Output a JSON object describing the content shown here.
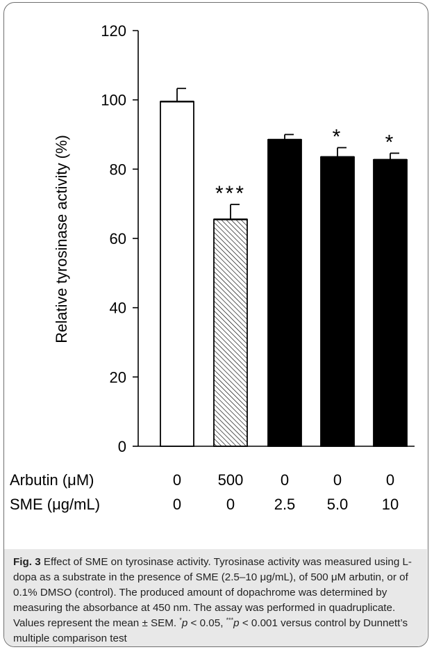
{
  "chart_data": {
    "type": "bar",
    "ylabel": "Relative tyrosinase activity (%)",
    "ylim": [
      0,
      120
    ],
    "yticks": [
      0,
      20,
      40,
      60,
      80,
      100,
      120
    ],
    "row_labels": [
      "Arbutin (μM)",
      "SME (μg/mL)"
    ],
    "categories": [
      {
        "arbutin": "0",
        "sme": "0"
      },
      {
        "arbutin": "500",
        "sme": "0"
      },
      {
        "arbutin": "0",
        "sme": "2.5"
      },
      {
        "arbutin": "0",
        "sme": "5.0"
      },
      {
        "arbutin": "0",
        "sme": "10"
      }
    ],
    "values": [
      99.5,
      65.5,
      88.5,
      83.5,
      82.7
    ],
    "errors": [
      3.8,
      4.3,
      1.5,
      2.7,
      1.9
    ],
    "fills": [
      "white",
      "hatched",
      "black",
      "black",
      "black"
    ],
    "significance": [
      "",
      "***",
      "",
      "*",
      "*"
    ]
  },
  "caption": {
    "fig_label": "Fig. 3",
    "text_1": " Effect of SME on tyrosinase activity. Tyrosinase activity was measured using L-dopa as a substrate in the presence of SME (2.5–10 μg/mL), of 500 μM arbutin, or of 0.1% DMSO (control). The produced amount of dopachrome was determined by measuring the absorbance at 450 nm. The assay was performed in quadruplicate. Values represent the mean ± SEM. ",
    "sup_1": "*",
    "p_1": "p",
    "text_2": " < 0.05, ",
    "sup_2": "***",
    "p_2": "p",
    "text_3": " < 0.001 versus control by Dunnett’s multiple comparison test"
  }
}
